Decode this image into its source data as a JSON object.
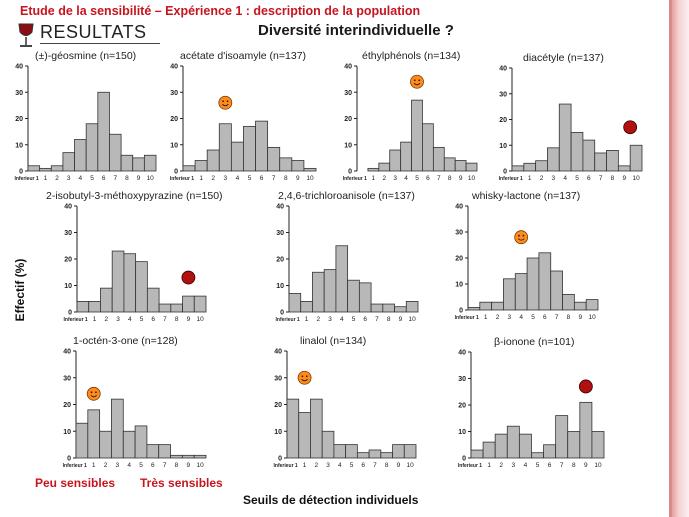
{
  "header": {
    "title": "Etude de la sensibilité – Expérience 1 : description de la population",
    "section": "RESULTATS",
    "main_title": "Diversité interindividuelle ?",
    "logo_icon": "wine-glass-icon"
  },
  "y_axis_label": "Effectif (%)",
  "x_axis_label": "Seuils de détection individuels",
  "legend": {
    "low_label": "Peu sensibles",
    "high_label": "Très sensibles",
    "low_icon": "smiley-icon",
    "high_icon": "red-dot-icon",
    "low_color": "#ff8c1a",
    "high_color": "#b01010"
  },
  "colors": {
    "bar_fill": "#b8b8b8",
    "bar_stroke": "#333333",
    "header_red": "#c8141e"
  },
  "chart_data": [
    {
      "type": "bar",
      "title": "(±)-géosmine (n=150)",
      "categories": [
        "Inferieur 1",
        "1",
        "2",
        "3",
        "4",
        "5",
        "6",
        "7",
        "8",
        "9",
        "10"
      ],
      "values": [
        2,
        1,
        2,
        7,
        12,
        18,
        30,
        14,
        6,
        5,
        6
      ],
      "ylim": [
        0,
        40
      ],
      "yticks": [
        0,
        10,
        20,
        30,
        40
      ],
      "marker": null
    },
    {
      "type": "bar",
      "title": "acétate d'isoamyle (n=137)",
      "categories": [
        "Inferieur 1",
        "1",
        "2",
        "3",
        "4",
        "5",
        "6",
        "7",
        "8",
        "9",
        "10"
      ],
      "values": [
        2,
        4,
        8,
        18,
        11,
        17,
        19,
        9,
        5,
        4,
        1
      ],
      "ylim": [
        0,
        40
      ],
      "yticks": [
        0,
        10,
        20,
        30,
        40
      ],
      "marker": {
        "kind": "smiley",
        "category_index": 3,
        "value": 26
      }
    },
    {
      "type": "bar",
      "title": "éthylphénols (n=134)",
      "categories": [
        "Inferieur 1",
        "1",
        "2",
        "3",
        "4",
        "5",
        "6",
        "7",
        "8",
        "9",
        "10"
      ],
      "values": [
        0,
        1,
        3,
        8,
        11,
        27,
        18,
        9,
        5,
        4,
        3
      ],
      "ylim": [
        0,
        40
      ],
      "yticks": [
        0,
        10,
        20,
        30,
        40
      ],
      "marker": {
        "kind": "smiley",
        "category_index": 5,
        "value": 34
      }
    },
    {
      "type": "bar",
      "title": "diacétyle (n=137)",
      "categories": [
        "Inferieur 1",
        "1",
        "2",
        "3",
        "4",
        "5",
        "6",
        "7",
        "8",
        "9",
        "10"
      ],
      "values": [
        2,
        3,
        4,
        9,
        26,
        15,
        12,
        7,
        8,
        2,
        10
      ],
      "ylim": [
        0,
        40
      ],
      "yticks": [
        0,
        10,
        20,
        30,
        40
      ],
      "marker": {
        "kind": "dot",
        "category_index": 9.5,
        "value": 17
      }
    },
    {
      "type": "bar",
      "title": "2-isobutyl-3-méthoxypyrazine (n=150)",
      "categories": [
        "Inferieur 1",
        "1",
        "2",
        "3",
        "4",
        "5",
        "6",
        "7",
        "8",
        "9",
        "10"
      ],
      "values": [
        4,
        4,
        9,
        23,
        22,
        19,
        9,
        3,
        3,
        6,
        6
      ],
      "ylim": [
        0,
        40
      ],
      "yticks": [
        0,
        10,
        20,
        30,
        40
      ],
      "marker": {
        "kind": "dot",
        "category_index": 9,
        "value": 13
      }
    },
    {
      "type": "bar",
      "title": "2,4,6-trichloroanisole (n=137)",
      "categories": [
        "Inferieur 1",
        "1",
        "2",
        "3",
        "4",
        "5",
        "6",
        "7",
        "8",
        "9",
        "10"
      ],
      "values": [
        7,
        4,
        15,
        16,
        25,
        12,
        11,
        3,
        3,
        2,
        4
      ],
      "ylim": [
        0,
        40
      ],
      "yticks": [
        0,
        10,
        20,
        30,
        40
      ],
      "marker": null
    },
    {
      "type": "bar",
      "title": "whisky-lactone (n=137)",
      "categories": [
        "Inferieur 1",
        "1",
        "2",
        "3",
        "4",
        "5",
        "6",
        "7",
        "8",
        "9",
        "10"
      ],
      "values": [
        1,
        3,
        3,
        12,
        14,
        20,
        22,
        15,
        6,
        3,
        4
      ],
      "ylim": [
        0,
        40
      ],
      "yticks": [
        0,
        10,
        20,
        30,
        40
      ],
      "marker": {
        "kind": "smiley",
        "category_index": 4,
        "value": 28
      }
    },
    {
      "type": "bar",
      "title": "1-octén-3-one (n=128)",
      "categories": [
        "Inferieur 1",
        "1",
        "2",
        "3",
        "4",
        "5",
        "6",
        "7",
        "8",
        "9",
        "10"
      ],
      "values": [
        13,
        18,
        10,
        22,
        10,
        12,
        5,
        5,
        1,
        1,
        1
      ],
      "ylim": [
        0,
        40
      ],
      "yticks": [
        0,
        10,
        20,
        30,
        40
      ],
      "marker": {
        "kind": "smiley",
        "category_index": 1,
        "value": 24
      }
    },
    {
      "type": "bar",
      "title": "linalol (n=134)",
      "categories": [
        "Inferieur 1",
        "1",
        "2",
        "3",
        "4",
        "5",
        "6",
        "7",
        "8",
        "9",
        "10"
      ],
      "values": [
        22,
        17,
        22,
        10,
        5,
        5,
        2,
        3,
        2,
        5,
        5
      ],
      "ylim": [
        0,
        40
      ],
      "yticks": [
        0,
        10,
        20,
        30,
        40
      ],
      "marker": {
        "kind": "smiley",
        "category_index": 1,
        "value": 30
      }
    },
    {
      "type": "bar",
      "title": "β-ionone (n=101)",
      "categories": [
        "Inferieur 1",
        "1",
        "2",
        "3",
        "4",
        "5",
        "6",
        "7",
        "8",
        "9",
        "10"
      ],
      "values": [
        3,
        6,
        9,
        12,
        9,
        2,
        5,
        16,
        10,
        21,
        10
      ],
      "ylim": [
        0,
        40
      ],
      "yticks": [
        0,
        10,
        20,
        30,
        40
      ],
      "marker": {
        "kind": "dot",
        "category_index": 9,
        "value": 27
      }
    }
  ]
}
